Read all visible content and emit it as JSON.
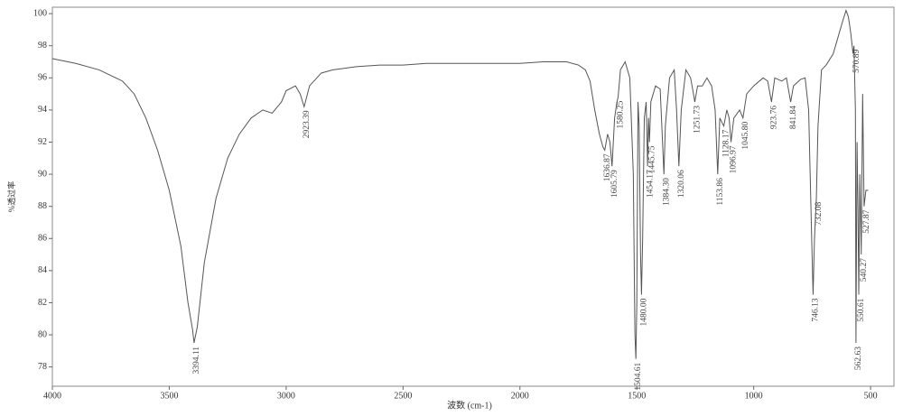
{
  "chart_data": {
    "type": "line",
    "xlabel": "波数 (cm-1)",
    "ylabel": "%透过率",
    "xlim": [
      4000,
      400
    ],
    "ylim": [
      76.8,
      100.4
    ],
    "xticks": [
      4000,
      3500,
      3000,
      2500,
      2000,
      1500,
      1000,
      500
    ],
    "yticks": [
      78,
      80,
      82,
      84,
      86,
      88,
      90,
      92,
      94,
      96,
      98,
      100
    ],
    "series": [
      {
        "color": "#555555",
        "x": [
          4000,
          3900,
          3800,
          3700,
          3650,
          3600,
          3550,
          3500,
          3450,
          3420,
          3400,
          3394,
          3380,
          3350,
          3300,
          3250,
          3200,
          3150,
          3100,
          3060,
          3020,
          3000,
          2960,
          2940,
          2923,
          2900,
          2850,
          2800,
          2700,
          2600,
          2500,
          2400,
          2300,
          2200,
          2100,
          2000,
          1900,
          1800,
          1750,
          1720,
          1700,
          1680,
          1660,
          1645,
          1637,
          1625,
          1615,
          1606,
          1595,
          1585,
          1580,
          1570,
          1550,
          1530,
          1515,
          1508,
          1504,
          1500,
          1495,
          1490,
          1484,
          1480,
          1475,
          1468,
          1460,
          1454,
          1450,
          1446,
          1440,
          1420,
          1400,
          1390,
          1384,
          1378,
          1360,
          1340,
          1330,
          1320,
          1310,
          1290,
          1270,
          1260,
          1252,
          1240,
          1220,
          1200,
          1180,
          1165,
          1154,
          1145,
          1128,
          1115,
          1105,
          1097,
          1085,
          1060,
          1046,
          1030,
          1000,
          960,
          940,
          924,
          910,
          880,
          860,
          842,
          830,
          800,
          780,
          765,
          752,
          746,
          740,
          732,
          725,
          710,
          690,
          660,
          640,
          620,
          605,
          595,
          585,
          575,
          571,
          565,
          562.6,
          558,
          554,
          550.6,
          546,
          540,
          534,
          527.9,
          520,
          510
        ],
        "values": [
          97.2,
          96.9,
          96.5,
          95.8,
          95.0,
          93.5,
          91.5,
          89,
          85.5,
          82,
          80.3,
          79.5,
          80.5,
          84.5,
          88.5,
          91,
          92.5,
          93.5,
          94.0,
          93.8,
          94.5,
          95.2,
          95.5,
          95.0,
          94.2,
          95.5,
          96.3,
          96.5,
          96.7,
          96.8,
          96.8,
          96.9,
          96.9,
          96.9,
          96.9,
          96.9,
          97.0,
          97.0,
          96.8,
          96.5,
          95.8,
          94.0,
          92.5,
          91.7,
          91.5,
          92.5,
          92.0,
          90.5,
          93.5,
          94.5,
          94.8,
          96.5,
          97.0,
          96.0,
          90,
          80,
          78.5,
          82,
          94.5,
          93,
          85,
          82.5,
          86,
          93.5,
          94.5,
          90.5,
          93.5,
          92,
          94.5,
          95.5,
          95.3,
          92,
          90,
          93,
          96,
          96.5,
          94,
          90.5,
          94,
          96.5,
          96,
          95.2,
          94.5,
          95.5,
          95.5,
          96,
          95.5,
          94,
          90,
          93.5,
          93,
          94,
          93.5,
          92,
          93.5,
          94,
          93.5,
          95,
          95.5,
          96,
          95.8,
          94.5,
          96,
          95.8,
          96,
          94.5,
          95.5,
          95.9,
          96,
          94,
          86,
          82.5,
          86,
          88.5,
          93,
          96.5,
          96.8,
          97.5,
          98.5,
          99.5,
          100.2,
          99.8,
          98.8,
          97.5,
          98,
          94,
          79.5,
          92,
          88,
          82.5,
          90,
          85,
          95,
          88,
          89,
          89
        ]
      }
    ],
    "annotations": [
      {
        "x": 3394.11,
        "y": 79.5,
        "label": "3394.11"
      },
      {
        "x": 2923.39,
        "y": 94.2,
        "label": "2923.39"
      },
      {
        "x": 1636.87,
        "y": 91.5,
        "label": "1636.87"
      },
      {
        "x": 1605.79,
        "y": 90.5,
        "label": "1605.79"
      },
      {
        "x": 1580.25,
        "y": 94.8,
        "label": "1580.25"
      },
      {
        "x": 1504.61,
        "y": 78.5,
        "label": "1504.61"
      },
      {
        "x": 1480.0,
        "y": 82.5,
        "label": "1480.00"
      },
      {
        "x": 1454.17,
        "y": 90.5,
        "label": "1454.17"
      },
      {
        "x": 1445.75,
        "y": 92,
        "label": "1445.75"
      },
      {
        "x": 1384.3,
        "y": 90,
        "label": "1384.30"
      },
      {
        "x": 1320.06,
        "y": 90.5,
        "label": "1320.06"
      },
      {
        "x": 1251.73,
        "y": 94.5,
        "label": "1251.73"
      },
      {
        "x": 1153.86,
        "y": 90,
        "label": "1153.86"
      },
      {
        "x": 1128.17,
        "y": 93,
        "label": "1128.17"
      },
      {
        "x": 1096.97,
        "y": 92,
        "label": "1096.97"
      },
      {
        "x": 1045.8,
        "y": 93.5,
        "label": "1045.80"
      },
      {
        "x": 923.76,
        "y": 94.5,
        "label": "923.76"
      },
      {
        "x": 841.84,
        "y": 94.5,
        "label": "841.84"
      },
      {
        "x": 746.13,
        "y": 82.5,
        "label": "746.13"
      },
      {
        "x": 732.08,
        "y": 88.5,
        "label": "732.08"
      },
      {
        "x": 570.89,
        "y": 98,
        "label": "570.89"
      },
      {
        "x": 562.63,
        "y": 79.5,
        "label": "562.63"
      },
      {
        "x": 550.61,
        "y": 82.5,
        "label": "550.61"
      },
      {
        "x": 540.27,
        "y": 85,
        "label": "540.27"
      },
      {
        "x": 527.87,
        "y": 88,
        "label": "527.87"
      }
    ]
  }
}
